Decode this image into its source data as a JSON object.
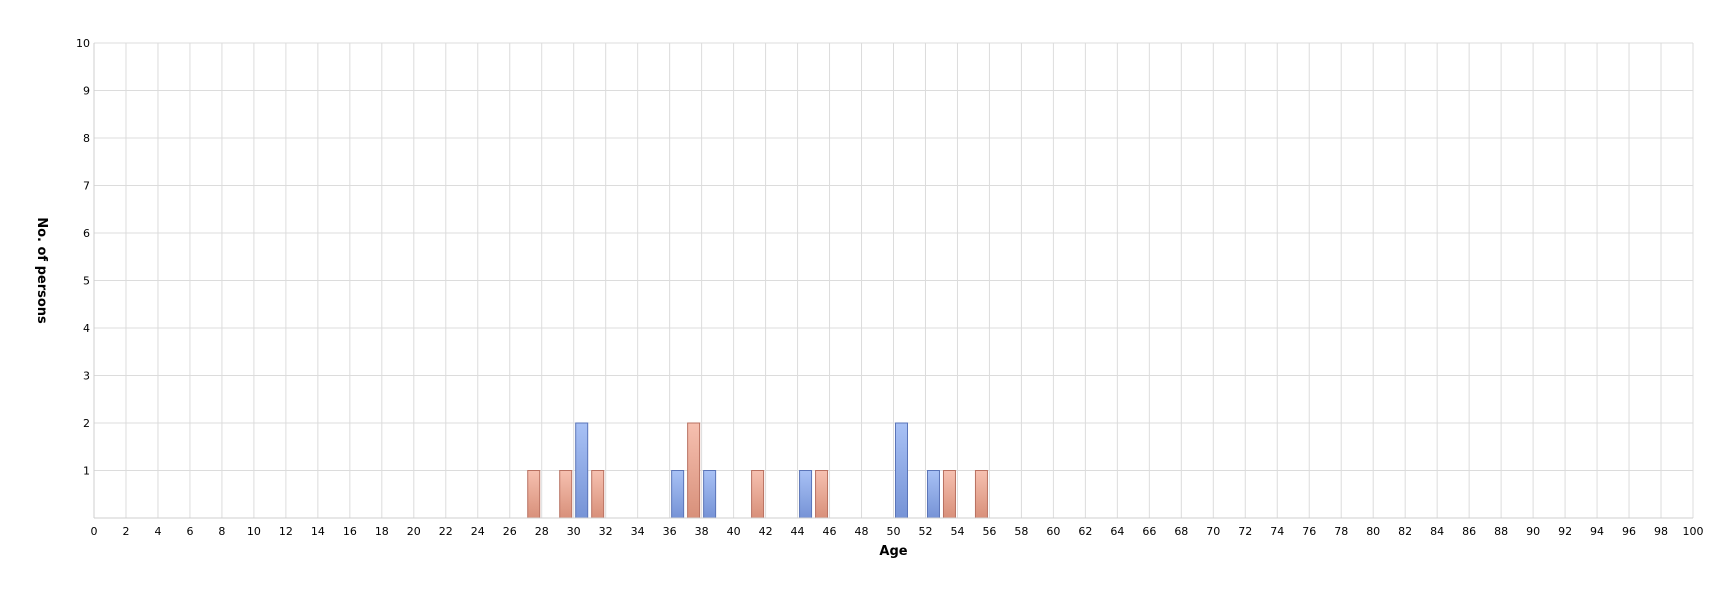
{
  "chart_data": {
    "type": "bar",
    "xlabel": "Age",
    "ylabel": "No. of persons",
    "xlim": [
      0,
      100
    ],
    "ylim": [
      0,
      10
    ],
    "x_ticks": [
      0,
      2,
      4,
      6,
      8,
      10,
      12,
      14,
      16,
      18,
      20,
      22,
      24,
      26,
      28,
      30,
      32,
      34,
      36,
      38,
      40,
      42,
      44,
      46,
      48,
      50,
      52,
      54,
      56,
      58,
      60,
      62,
      64,
      66,
      68,
      70,
      72,
      74,
      76,
      78,
      80,
      82,
      84,
      86,
      88,
      90,
      92,
      94,
      96,
      98,
      100
    ],
    "y_ticks": [
      1,
      2,
      3,
      4,
      5,
      6,
      7,
      8,
      9,
      10
    ],
    "grid": true,
    "legend": "none",
    "series": [
      {
        "color": "#8aa7e6",
        "points": [
          {
            "x": 30,
            "y": 2
          },
          {
            "x": 36,
            "y": 1
          },
          {
            "x": 38,
            "y": 1
          },
          {
            "x": 44,
            "y": 1
          },
          {
            "x": 50,
            "y": 2
          },
          {
            "x": 52,
            "y": 1
          }
        ]
      },
      {
        "color": "#eca58f",
        "points": [
          {
            "x": 27,
            "y": 1
          },
          {
            "x": 29,
            "y": 1
          },
          {
            "x": 31,
            "y": 1
          },
          {
            "x": 37,
            "y": 2
          },
          {
            "x": 41,
            "y": 1
          },
          {
            "x": 45,
            "y": 1
          },
          {
            "x": 53,
            "y": 1
          },
          {
            "x": 55,
            "y": 1
          }
        ]
      }
    ]
  }
}
